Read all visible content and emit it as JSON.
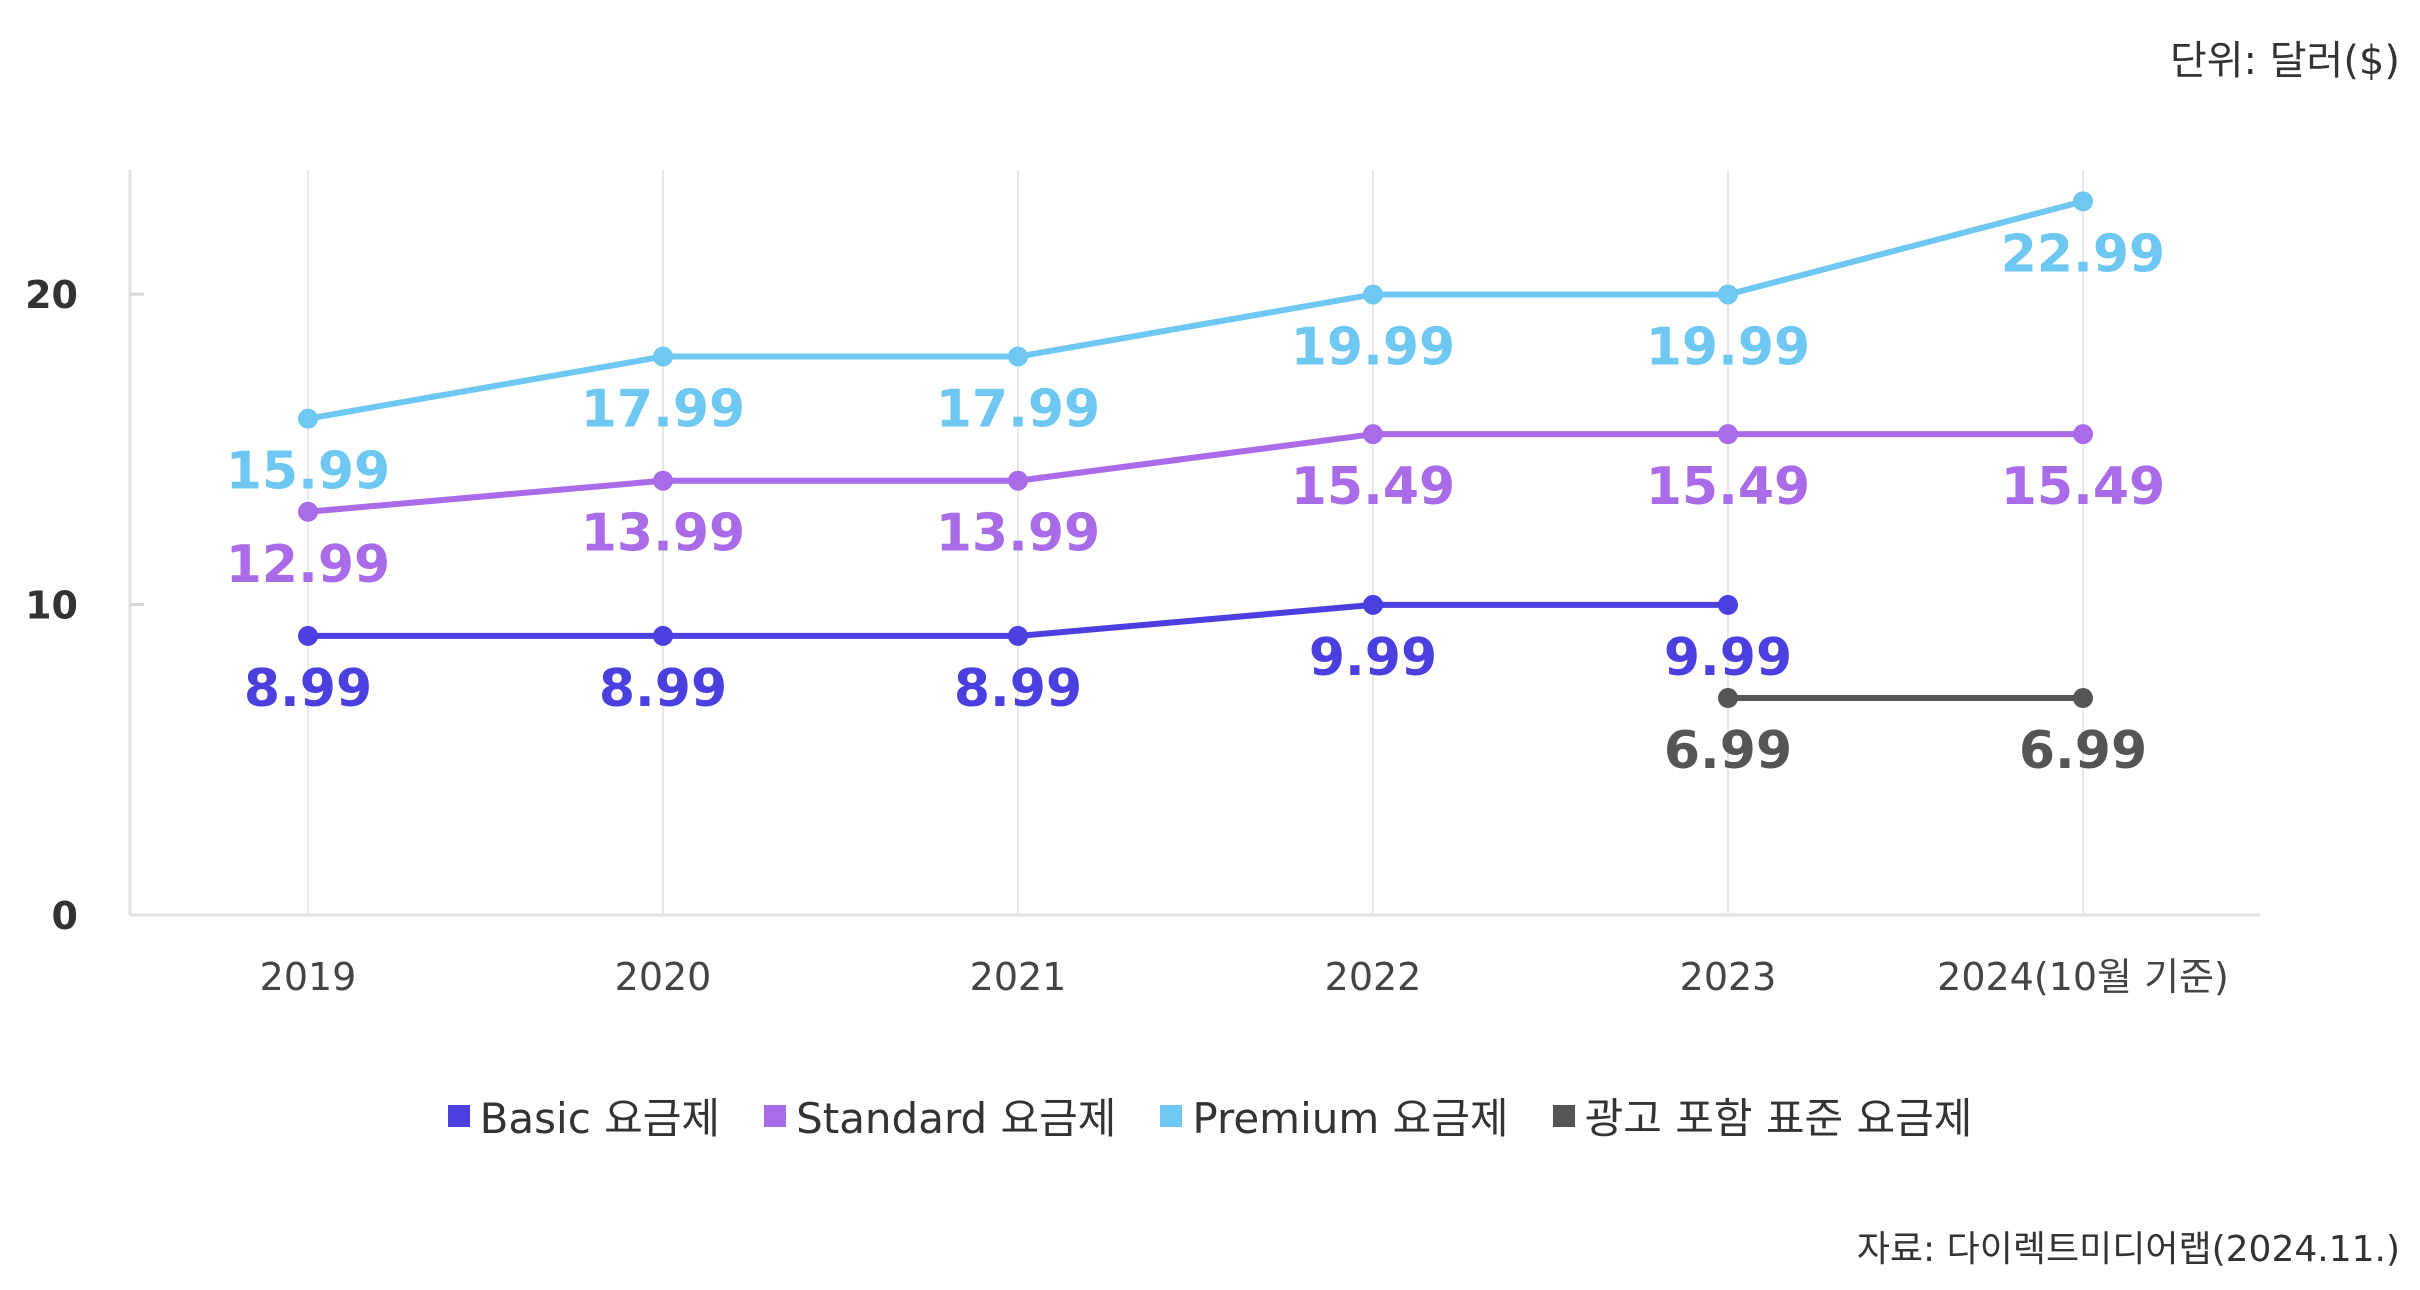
{
  "unit_label": "단위: 달러($)",
  "source_label": "자료: 다이렉트미디어랩(2024.11.)",
  "chart_data": {
    "type": "line",
    "categories": [
      "2019",
      "2020",
      "2021",
      "2022",
      "2023",
      "2024(10월 기준)"
    ],
    "ylim": [
      0,
      24
    ],
    "y_ticks": [
      "0",
      "10",
      "20"
    ],
    "grid": "vertical",
    "legend_position": "bottom",
    "series": [
      {
        "name": "Basic 요금제",
        "color": "#4B3FE0",
        "values": [
          8.99,
          8.99,
          8.99,
          9.99,
          9.99,
          null
        ],
        "labels": [
          "8.99",
          "8.99",
          "8.99",
          "9.99",
          "9.99",
          ""
        ]
      },
      {
        "name": "Standard 요금제",
        "color": "#A96BE8",
        "values": [
          12.99,
          13.99,
          13.99,
          15.49,
          15.49,
          15.49
        ],
        "labels": [
          "12.99",
          "13.99",
          "13.99",
          "15.49",
          "15.49",
          "15.49"
        ]
      },
      {
        "name": "Premium 요금제",
        "color": "#6EC8F2",
        "values": [
          15.99,
          17.99,
          17.99,
          19.99,
          19.99,
          22.99
        ],
        "labels": [
          "15.99",
          "17.99",
          "17.99",
          "19.99",
          "19.99",
          "22.99"
        ]
      },
      {
        "name": "광고 포함 표준 요금제",
        "color": "#555555",
        "values": [
          null,
          null,
          null,
          null,
          6.99,
          6.99
        ],
        "labels": [
          "",
          "",
          "",
          "",
          "6.99",
          "6.99"
        ]
      }
    ]
  }
}
